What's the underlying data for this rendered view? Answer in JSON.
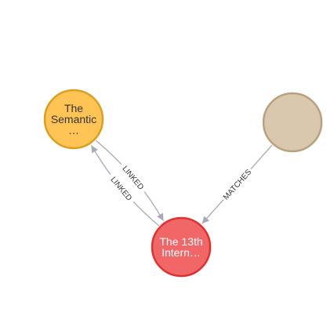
{
  "graph": {
    "nodes": [
      {
        "id": "semantic",
        "label_lines": [
          "The",
          "Semantic",
          "…"
        ],
        "fill": "#ffc454",
        "stroke": "#d9a020",
        "text_color": "#333333"
      },
      {
        "id": "internet",
        "label_lines": [
          "The 13th",
          "Intern…"
        ],
        "fill": "#f16667",
        "stroke": "#e0302f",
        "text_color": "#ffffff"
      },
      {
        "id": "unnamed",
        "label_lines": [],
        "fill": "#d9c8ae",
        "stroke": "#b9a17e",
        "text_color": "#333333"
      }
    ],
    "relationships": [
      {
        "id": "rel-linked-out",
        "type": "LINKED",
        "from": "semantic",
        "to": "internet"
      },
      {
        "id": "rel-linked-back",
        "type": "LINKED",
        "from": "internet",
        "to": "semantic"
      },
      {
        "id": "rel-matches",
        "type": "MATCHES",
        "from": "unnamed",
        "to": "internet"
      }
    ],
    "edge_color": "#a5abb6"
  }
}
